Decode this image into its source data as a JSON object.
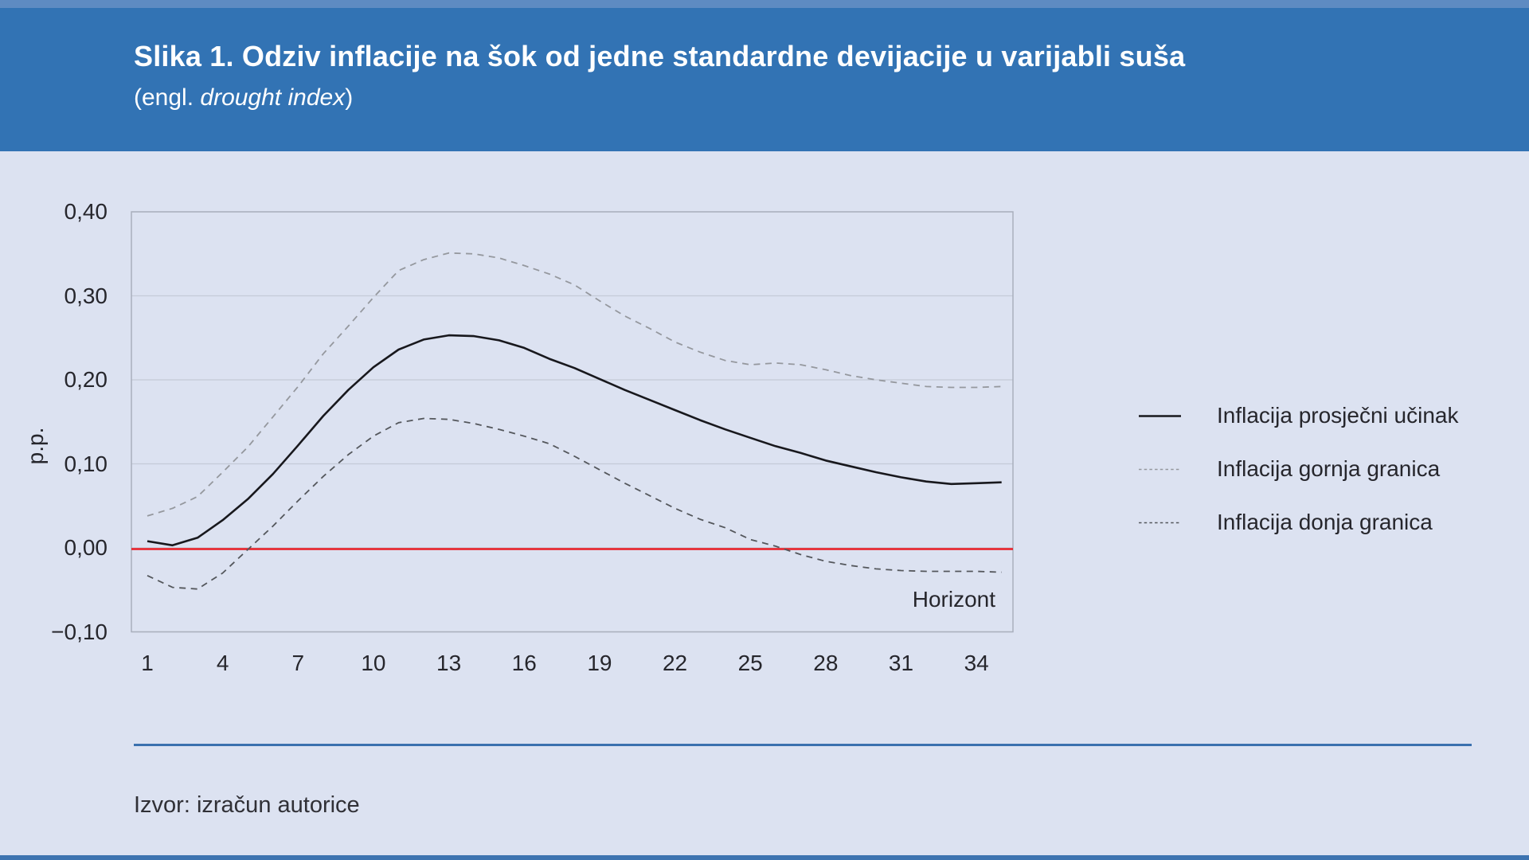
{
  "header": {
    "title": "Slika 1. Odziv inflacije na šok od jedne standardne devijacije u varijabli suša",
    "subtitle_prefix": "(engl. ",
    "subtitle_italic": "drought index",
    "subtitle_suffix": ")"
  },
  "source_note": "Izvor: izračun autorice",
  "colors": {
    "header_background": "#3273b4",
    "top_strip": "#5e8bc2",
    "bottom_strip": "#3d73b0",
    "page_background": "#dce2f1",
    "grid_line": "#c4cad7",
    "plot_border": "#a9afbd",
    "zero_line": "#ea1c25",
    "series_mean": "#18181d",
    "series_upper": "#95989e",
    "series_lower": "#54575c",
    "separator": "#3a70ae",
    "title_text": "#ffffff",
    "body_text": "#26262c"
  },
  "chart_data": {
    "type": "line",
    "title": "Slika 1. Odziv inflacije na šok od jedne standardne devijacije u varijabli suša (engl. drought index)",
    "ylabel": "p.p.",
    "xlabel_inside": "Horizont",
    "ylim": [
      -0.1,
      0.4
    ],
    "xlim": [
      0,
      35.5
    ],
    "grid": true,
    "legend_position": "right",
    "y_ticks": [
      "0,40",
      "0,30",
      "0,20",
      "0,10",
      "0,00",
      "−0,10"
    ],
    "y_tick_values": [
      0.4,
      0.3,
      0.2,
      0.1,
      0.0,
      -0.1
    ],
    "x_ticks": [
      1,
      4,
      7,
      10,
      13,
      16,
      19,
      22,
      25,
      28,
      31,
      34
    ],
    "x": [
      1,
      2,
      3,
      4,
      5,
      6,
      7,
      8,
      9,
      10,
      11,
      12,
      13,
      14,
      15,
      16,
      17,
      18,
      19,
      20,
      21,
      22,
      23,
      24,
      25,
      26,
      27,
      28,
      29,
      30,
      31,
      32,
      33,
      34,
      35
    ],
    "zero_line_value": 0.0,
    "series": [
      {
        "name": "Inflacija prosječni učinak",
        "style": "solid",
        "color": "#18181d",
        "values": [
          0.008,
          0.003,
          0.012,
          0.033,
          0.058,
          0.088,
          0.122,
          0.157,
          0.188,
          0.215,
          0.236,
          0.248,
          0.253,
          0.252,
          0.247,
          0.238,
          0.225,
          0.214,
          0.201,
          0.188,
          0.176,
          0.164,
          0.152,
          0.141,
          0.131,
          0.121,
          0.113,
          0.104,
          0.097,
          0.09,
          0.084,
          0.079,
          0.076,
          0.077,
          0.078
        ]
      },
      {
        "name": "Inflacija gornja granica",
        "style": "dashed",
        "color": "#95989e",
        "values": [
          0.038,
          0.047,
          0.061,
          0.09,
          0.12,
          0.156,
          0.192,
          0.231,
          0.264,
          0.298,
          0.33,
          0.343,
          0.351,
          0.35,
          0.345,
          0.336,
          0.326,
          0.313,
          0.294,
          0.276,
          0.261,
          0.245,
          0.233,
          0.223,
          0.218,
          0.22,
          0.218,
          0.212,
          0.205,
          0.2,
          0.196,
          0.192,
          0.191,
          0.191,
          0.192
        ]
      },
      {
        "name": "Inflacija donja granica",
        "style": "dashed",
        "color": "#54575c",
        "values": [
          -0.033,
          -0.047,
          -0.049,
          -0.03,
          -0.002,
          0.026,
          0.056,
          0.085,
          0.111,
          0.133,
          0.149,
          0.154,
          0.153,
          0.148,
          0.141,
          0.133,
          0.124,
          0.109,
          0.093,
          0.077,
          0.062,
          0.047,
          0.034,
          0.024,
          0.01,
          0.002,
          -0.008,
          -0.016,
          -0.021,
          -0.025,
          -0.027,
          -0.028,
          -0.028,
          -0.028,
          -0.029
        ]
      }
    ]
  }
}
